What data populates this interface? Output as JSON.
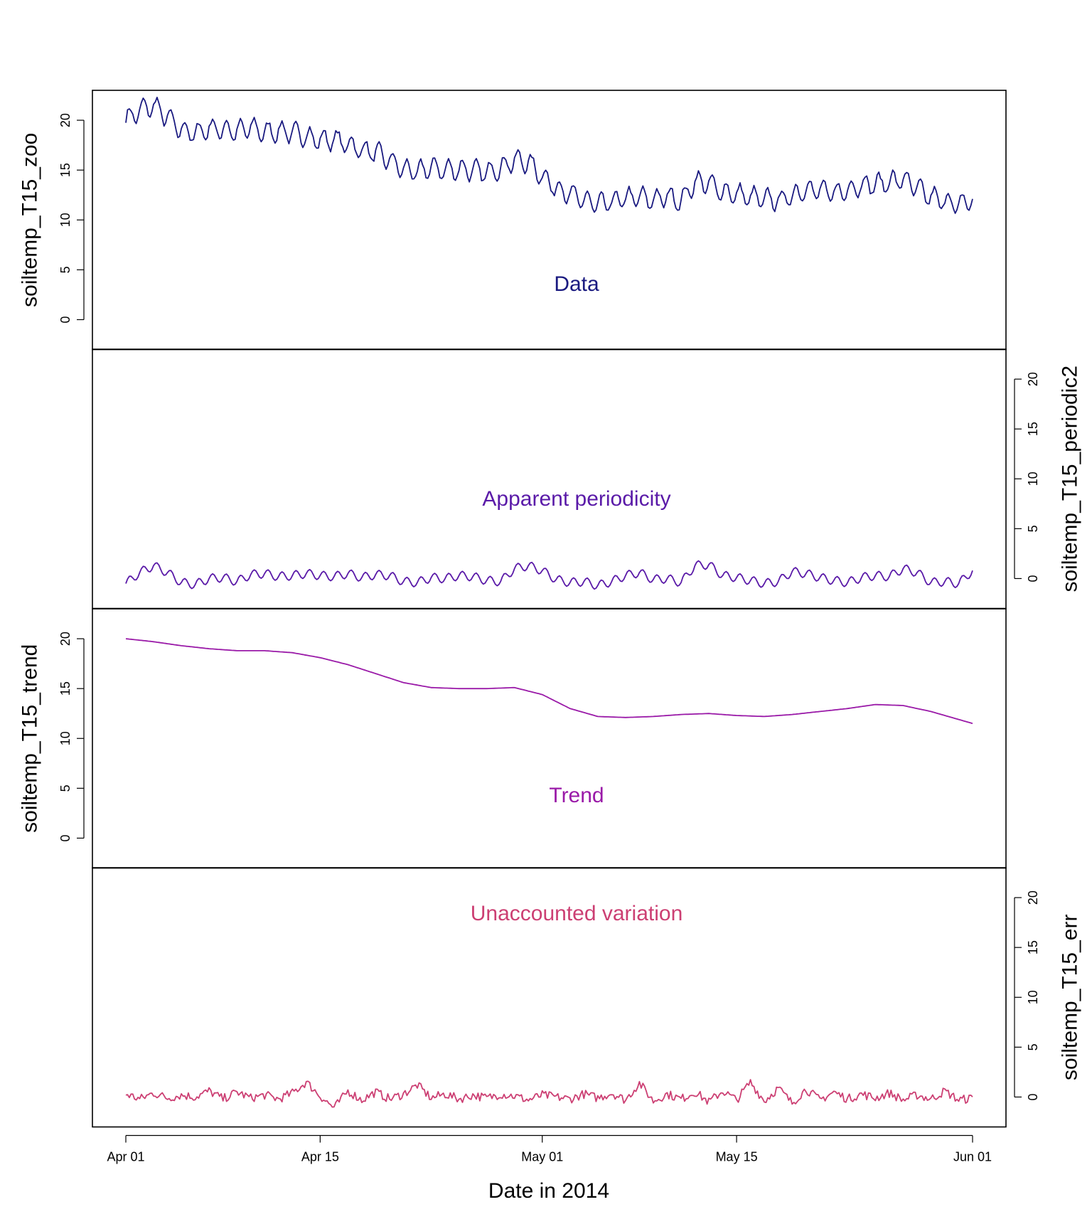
{
  "chart_data": {
    "type": "line",
    "xlabel": "Date in 2014",
    "x_axis": {
      "range": [
        "2014-04-01",
        "2014-06-01"
      ],
      "ticks": [
        {
          "date": "2014-04-01",
          "label": "Apr 01"
        },
        {
          "date": "2014-04-15",
          "label": "Apr 15"
        },
        {
          "date": "2014-05-01",
          "label": "May 01"
        },
        {
          "date": "2014-05-15",
          "label": "May 15"
        },
        {
          "date": "2014-06-01",
          "label": "Jun 01"
        }
      ]
    },
    "y_ticks": [
      0,
      5,
      10,
      15,
      20
    ],
    "panels": [
      {
        "ylabel": "soiltemp_T15_zoo",
        "y_axis_side": "left",
        "ylim": [
          -3,
          23
        ],
        "label": "Data",
        "color": "#1a1a80",
        "points": [
          [
            "2014-04-01",
            20.0
          ],
          [
            "2014-04-02",
            21.0
          ],
          [
            "2014-04-03",
            21.5
          ],
          [
            "2014-04-04",
            20.3
          ],
          [
            "2014-04-05",
            19.0
          ],
          [
            "2014-04-06",
            18.7
          ],
          [
            "2014-04-07",
            19.2
          ],
          [
            "2014-04-08",
            19.1
          ],
          [
            "2014-04-09",
            18.9
          ],
          [
            "2014-04-10",
            19.3
          ],
          [
            "2014-04-11",
            18.8
          ],
          [
            "2014-04-12",
            18.9
          ],
          [
            "2014-04-13",
            18.8
          ],
          [
            "2014-04-14",
            18.4
          ],
          [
            "2014-04-15",
            18.0
          ],
          [
            "2014-04-16",
            18.1
          ],
          [
            "2014-04-17",
            17.6
          ],
          [
            "2014-04-18",
            17.0
          ],
          [
            "2014-04-19",
            16.8
          ],
          [
            "2014-04-20",
            16.0
          ],
          [
            "2014-04-21",
            15.1
          ],
          [
            "2014-04-22",
            14.8
          ],
          [
            "2014-04-23",
            15.3
          ],
          [
            "2014-04-24",
            15.0
          ],
          [
            "2014-04-25",
            15.1
          ],
          [
            "2014-04-26",
            15.0
          ],
          [
            "2014-04-27",
            14.8
          ],
          [
            "2014-04-28",
            15.2
          ],
          [
            "2014-04-29",
            16.0
          ],
          [
            "2014-04-30",
            15.8
          ],
          [
            "2014-05-01",
            14.4
          ],
          [
            "2014-05-02",
            13.2
          ],
          [
            "2014-05-03",
            12.6
          ],
          [
            "2014-05-04",
            12.0
          ],
          [
            "2014-05-05",
            11.6
          ],
          [
            "2014-05-06",
            11.8
          ],
          [
            "2014-05-07",
            12.2
          ],
          [
            "2014-05-08",
            12.3
          ],
          [
            "2014-05-09",
            12.0
          ],
          [
            "2014-05-10",
            12.4
          ],
          [
            "2014-05-11",
            11.9
          ],
          [
            "2014-05-12",
            13.8
          ],
          [
            "2014-05-13",
            13.7
          ],
          [
            "2014-05-14",
            12.8
          ],
          [
            "2014-05-15",
            12.6
          ],
          [
            "2014-05-16",
            12.3
          ],
          [
            "2014-05-17",
            12.1
          ],
          [
            "2014-05-18",
            12.0
          ],
          [
            "2014-05-19",
            12.4
          ],
          [
            "2014-05-20",
            13.1
          ],
          [
            "2014-05-21",
            13.0
          ],
          [
            "2014-05-22",
            12.7
          ],
          [
            "2014-05-23",
            13.0
          ],
          [
            "2014-05-24",
            13.5
          ],
          [
            "2014-05-25",
            13.6
          ],
          [
            "2014-05-26",
            13.8
          ],
          [
            "2014-05-27",
            14.1
          ],
          [
            "2014-05-28",
            13.2
          ],
          [
            "2014-05-29",
            12.3
          ],
          [
            "2014-05-30",
            11.9
          ],
          [
            "2014-05-31",
            11.5
          ],
          [
            "2014-06-01",
            12.1
          ]
        ]
      },
      {
        "ylabel": "soiltemp_T15_periodic2",
        "y_axis_side": "right",
        "ylim": [
          -3,
          23
        ],
        "label": "Apparent periodicity",
        "color": "#5a1aa8",
        "points": [
          [
            "2014-04-01",
            -0.5
          ],
          [
            "2014-04-02",
            0.6
          ],
          [
            "2014-04-03",
            1.3
          ],
          [
            "2014-04-04",
            0.6
          ],
          [
            "2014-04-05",
            -0.4
          ],
          [
            "2014-04-06",
            -0.6
          ],
          [
            "2014-04-07",
            0.0
          ],
          [
            "2014-04-08",
            0.1
          ],
          [
            "2014-04-09",
            -0.3
          ],
          [
            "2014-04-10",
            0.4
          ],
          [
            "2014-04-11",
            0.5
          ],
          [
            "2014-04-12",
            0.2
          ],
          [
            "2014-04-13",
            0.3
          ],
          [
            "2014-04-14",
            0.5
          ],
          [
            "2014-04-15",
            0.3
          ],
          [
            "2014-04-16",
            0.2
          ],
          [
            "2014-04-17",
            0.5
          ],
          [
            "2014-04-18",
            0.1
          ],
          [
            "2014-04-19",
            0.4
          ],
          [
            "2014-04-20",
            0.3
          ],
          [
            "2014-04-21",
            -0.3
          ],
          [
            "2014-04-22",
            -0.4
          ],
          [
            "2014-04-23",
            0.1
          ],
          [
            "2014-04-24",
            0.0
          ],
          [
            "2014-04-25",
            0.3
          ],
          [
            "2014-04-26",
            0.2
          ],
          [
            "2014-04-27",
            -0.2
          ],
          [
            "2014-04-28",
            -0.3
          ],
          [
            "2014-04-29",
            1.0
          ],
          [
            "2014-04-30",
            1.3
          ],
          [
            "2014-05-01",
            0.8
          ],
          [
            "2014-05-02",
            -0.1
          ],
          [
            "2014-05-03",
            -0.4
          ],
          [
            "2014-05-04",
            -0.3
          ],
          [
            "2014-05-05",
            -0.7
          ],
          [
            "2014-05-06",
            -0.3
          ],
          [
            "2014-05-07",
            0.3
          ],
          [
            "2014-05-08",
            0.6
          ],
          [
            "2014-05-09",
            -0.1
          ],
          [
            "2014-05-10",
            0.0
          ],
          [
            "2014-05-11",
            -0.4
          ],
          [
            "2014-05-12",
            1.3
          ],
          [
            "2014-05-13",
            1.4
          ],
          [
            "2014-05-14",
            0.3
          ],
          [
            "2014-05-15",
            0.1
          ],
          [
            "2014-05-16",
            -0.2
          ],
          [
            "2014-05-17",
            -0.5
          ],
          [
            "2014-05-18",
            -0.3
          ],
          [
            "2014-05-19",
            0.7
          ],
          [
            "2014-05-20",
            0.5
          ],
          [
            "2014-05-21",
            0.1
          ],
          [
            "2014-05-22",
            -0.2
          ],
          [
            "2014-05-23",
            -0.4
          ],
          [
            "2014-05-24",
            0.1
          ],
          [
            "2014-05-25",
            0.3
          ],
          [
            "2014-05-26",
            0.2
          ],
          [
            "2014-05-27",
            1.0
          ],
          [
            "2014-05-28",
            0.6
          ],
          [
            "2014-05-29",
            -0.4
          ],
          [
            "2014-05-30",
            -0.3
          ],
          [
            "2014-05-31",
            -0.5
          ],
          [
            "2014-06-01",
            0.8
          ]
        ]
      },
      {
        "ylabel": "soiltemp_T15_trend",
        "y_axis_side": "left",
        "ylim": [
          -3,
          23
        ],
        "label": "Trend",
        "color": "#9a1aa8",
        "points": [
          [
            "2014-04-01",
            20.0
          ],
          [
            "2014-04-03",
            19.7
          ],
          [
            "2014-04-05",
            19.3
          ],
          [
            "2014-04-07",
            19.0
          ],
          [
            "2014-04-09",
            18.8
          ],
          [
            "2014-04-11",
            18.8
          ],
          [
            "2014-04-13",
            18.6
          ],
          [
            "2014-04-15",
            18.1
          ],
          [
            "2014-04-17",
            17.4
          ],
          [
            "2014-04-19",
            16.5
          ],
          [
            "2014-04-21",
            15.6
          ],
          [
            "2014-04-23",
            15.1
          ],
          [
            "2014-04-25",
            15.0
          ],
          [
            "2014-04-27",
            15.0
          ],
          [
            "2014-04-29",
            15.1
          ],
          [
            "2014-05-01",
            14.4
          ],
          [
            "2014-05-03",
            13.0
          ],
          [
            "2014-05-05",
            12.2
          ],
          [
            "2014-05-07",
            12.1
          ],
          [
            "2014-05-09",
            12.2
          ],
          [
            "2014-05-11",
            12.4
          ],
          [
            "2014-05-13",
            12.5
          ],
          [
            "2014-05-15",
            12.3
          ],
          [
            "2014-05-17",
            12.2
          ],
          [
            "2014-05-19",
            12.4
          ],
          [
            "2014-05-21",
            12.7
          ],
          [
            "2014-05-23",
            13.0
          ],
          [
            "2014-05-25",
            13.4
          ],
          [
            "2014-05-27",
            13.3
          ],
          [
            "2014-05-29",
            12.7
          ],
          [
            "2014-05-31",
            11.9
          ],
          [
            "2014-06-01",
            11.5
          ]
        ]
      },
      {
        "ylabel": "soiltemp_T15_err",
        "y_axis_side": "right",
        "ylim": [
          -3,
          23
        ],
        "label": "Unaccounted variation",
        "color": "#cc3f73",
        "points": [
          [
            "2014-04-01",
            0.3
          ],
          [
            "2014-04-02",
            -0.2
          ],
          [
            "2014-04-03",
            0.4
          ],
          [
            "2014-04-04",
            -0.1
          ],
          [
            "2014-04-05",
            0.2
          ],
          [
            "2014-04-06",
            0.0
          ],
          [
            "2014-04-07",
            0.6
          ],
          [
            "2014-04-08",
            -0.2
          ],
          [
            "2014-04-09",
            0.5
          ],
          [
            "2014-04-10",
            -0.1
          ],
          [
            "2014-04-11",
            0.2
          ],
          [
            "2014-04-12",
            -0.2
          ],
          [
            "2014-04-13",
            0.4
          ],
          [
            "2014-04-14",
            1.5
          ],
          [
            "2014-04-15",
            0.1
          ],
          [
            "2014-04-16",
            -1.1
          ],
          [
            "2014-04-17",
            0.6
          ],
          [
            "2014-04-18",
            -0.3
          ],
          [
            "2014-04-19",
            0.5
          ],
          [
            "2014-04-20",
            -0.2
          ],
          [
            "2014-04-21",
            0.3
          ],
          [
            "2014-04-22",
            1.2
          ],
          [
            "2014-04-23",
            -0.1
          ],
          [
            "2014-04-24",
            0.3
          ],
          [
            "2014-04-25",
            -0.2
          ],
          [
            "2014-04-26",
            0.2
          ],
          [
            "2014-04-27",
            -0.1
          ],
          [
            "2014-04-28",
            0.3
          ],
          [
            "2014-04-29",
            0.1
          ],
          [
            "2014-04-30",
            -0.3
          ],
          [
            "2014-05-01",
            0.2
          ],
          [
            "2014-05-02",
            0.0
          ],
          [
            "2014-05-03",
            -0.2
          ],
          [
            "2014-05-04",
            0.3
          ],
          [
            "2014-05-05",
            -0.1
          ],
          [
            "2014-05-06",
            0.4
          ],
          [
            "2014-05-07",
            -0.3
          ],
          [
            "2014-05-08",
            1.4
          ],
          [
            "2014-05-09",
            -0.4
          ],
          [
            "2014-05-10",
            0.3
          ],
          [
            "2014-05-11",
            -0.2
          ],
          [
            "2014-05-12",
            0.5
          ],
          [
            "2014-05-13",
            -0.5
          ],
          [
            "2014-05-14",
            0.6
          ],
          [
            "2014-05-15",
            -0.3
          ],
          [
            "2014-05-16",
            1.5
          ],
          [
            "2014-05-17",
            -0.4
          ],
          [
            "2014-05-18",
            0.9
          ],
          [
            "2014-05-19",
            -0.6
          ],
          [
            "2014-05-20",
            0.8
          ],
          [
            "2014-05-21",
            -0.3
          ],
          [
            "2014-05-22",
            0.5
          ],
          [
            "2014-05-23",
            -0.2
          ],
          [
            "2014-05-24",
            0.3
          ],
          [
            "2014-05-25",
            -0.1
          ],
          [
            "2014-05-26",
            0.4
          ],
          [
            "2014-05-27",
            -0.3
          ],
          [
            "2014-05-28",
            0.2
          ],
          [
            "2014-05-29",
            -0.2
          ],
          [
            "2014-05-30",
            0.6
          ],
          [
            "2014-05-31",
            -0.3
          ],
          [
            "2014-06-01",
            -0.1
          ]
        ]
      }
    ]
  }
}
